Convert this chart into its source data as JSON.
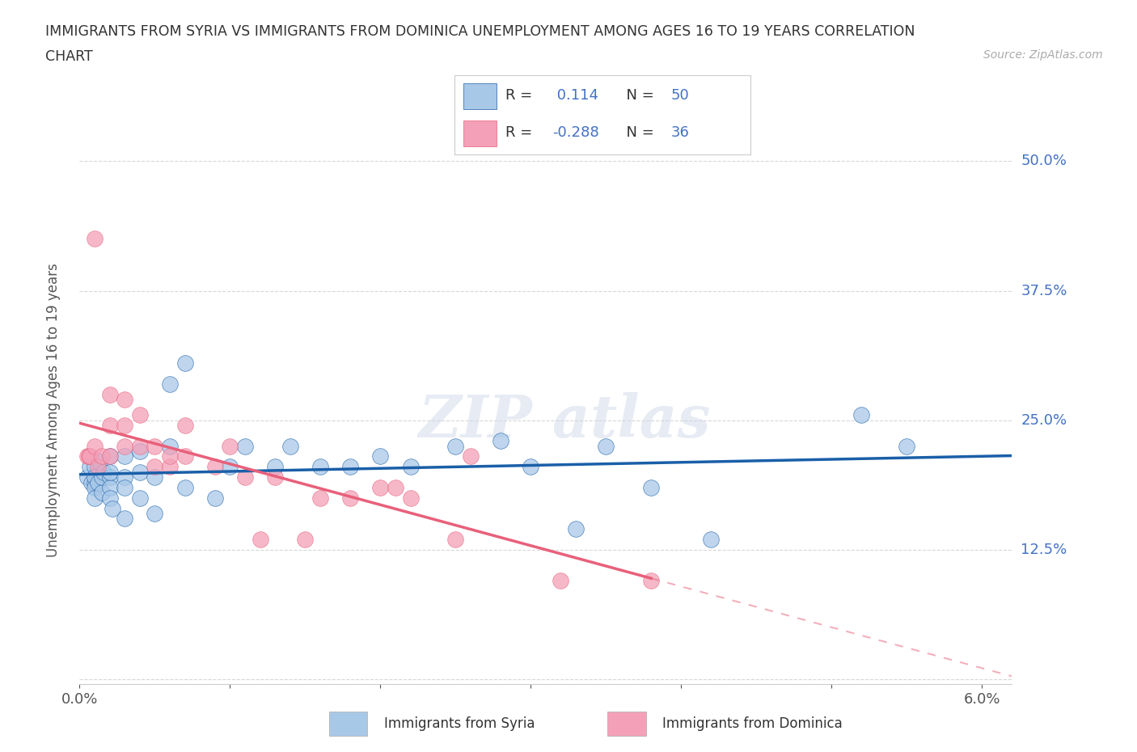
{
  "title_line1": "IMMIGRANTS FROM SYRIA VS IMMIGRANTS FROM DOMINICA UNEMPLOYMENT AMONG AGES 16 TO 19 YEARS CORRELATION",
  "title_line2": "CHART",
  "source": "Source: ZipAtlas.com",
  "ylabel": "Unemployment Among Ages 16 to 19 years",
  "xlim": [
    0.0,
    0.062
  ],
  "ylim": [
    -0.005,
    0.525
  ],
  "syria_R": 0.114,
  "syria_N": 50,
  "dominica_R": -0.288,
  "dominica_N": 36,
  "syria_color": "#a8c8e8",
  "dominica_color": "#f4a0b8",
  "syria_line_color": "#1a5fa8",
  "dominica_line_color": "#e8607a",
  "tick_label_color": "#4472c4",
  "syria_scatter_x": [
    0.0005,
    0.0007,
    0.0008,
    0.001,
    0.001,
    0.001,
    0.001,
    0.001,
    0.0012,
    0.0013,
    0.0015,
    0.0015,
    0.0016,
    0.002,
    0.002,
    0.002,
    0.002,
    0.002,
    0.0022,
    0.003,
    0.003,
    0.003,
    0.003,
    0.004,
    0.004,
    0.004,
    0.005,
    0.005,
    0.006,
    0.006,
    0.007,
    0.007,
    0.009,
    0.01,
    0.011,
    0.013,
    0.014,
    0.016,
    0.018,
    0.02,
    0.022,
    0.025,
    0.028,
    0.03,
    0.033,
    0.035,
    0.038,
    0.042,
    0.052,
    0.055
  ],
  "syria_scatter_y": [
    0.195,
    0.205,
    0.19,
    0.19,
    0.205,
    0.195,
    0.185,
    0.175,
    0.19,
    0.21,
    0.18,
    0.195,
    0.2,
    0.195,
    0.185,
    0.2,
    0.215,
    0.175,
    0.165,
    0.195,
    0.185,
    0.215,
    0.155,
    0.2,
    0.22,
    0.175,
    0.195,
    0.16,
    0.285,
    0.225,
    0.305,
    0.185,
    0.175,
    0.205,
    0.225,
    0.205,
    0.225,
    0.205,
    0.205,
    0.215,
    0.205,
    0.225,
    0.23,
    0.205,
    0.145,
    0.225,
    0.185,
    0.135,
    0.255,
    0.225
  ],
  "dominica_scatter_x": [
    0.0005,
    0.0006,
    0.0007,
    0.001,
    0.001,
    0.0012,
    0.0015,
    0.002,
    0.002,
    0.002,
    0.003,
    0.003,
    0.003,
    0.004,
    0.004,
    0.005,
    0.005,
    0.006,
    0.006,
    0.007,
    0.007,
    0.009,
    0.01,
    0.011,
    0.012,
    0.013,
    0.015,
    0.016,
    0.018,
    0.02,
    0.021,
    0.022,
    0.025,
    0.026,
    0.032,
    0.038
  ],
  "dominica_scatter_y": [
    0.215,
    0.215,
    0.215,
    0.425,
    0.225,
    0.205,
    0.215,
    0.275,
    0.245,
    0.215,
    0.27,
    0.245,
    0.225,
    0.255,
    0.225,
    0.205,
    0.225,
    0.205,
    0.215,
    0.245,
    0.215,
    0.205,
    0.225,
    0.195,
    0.135,
    0.195,
    0.135,
    0.175,
    0.175,
    0.185,
    0.185,
    0.175,
    0.135,
    0.215,
    0.095,
    0.095
  ]
}
